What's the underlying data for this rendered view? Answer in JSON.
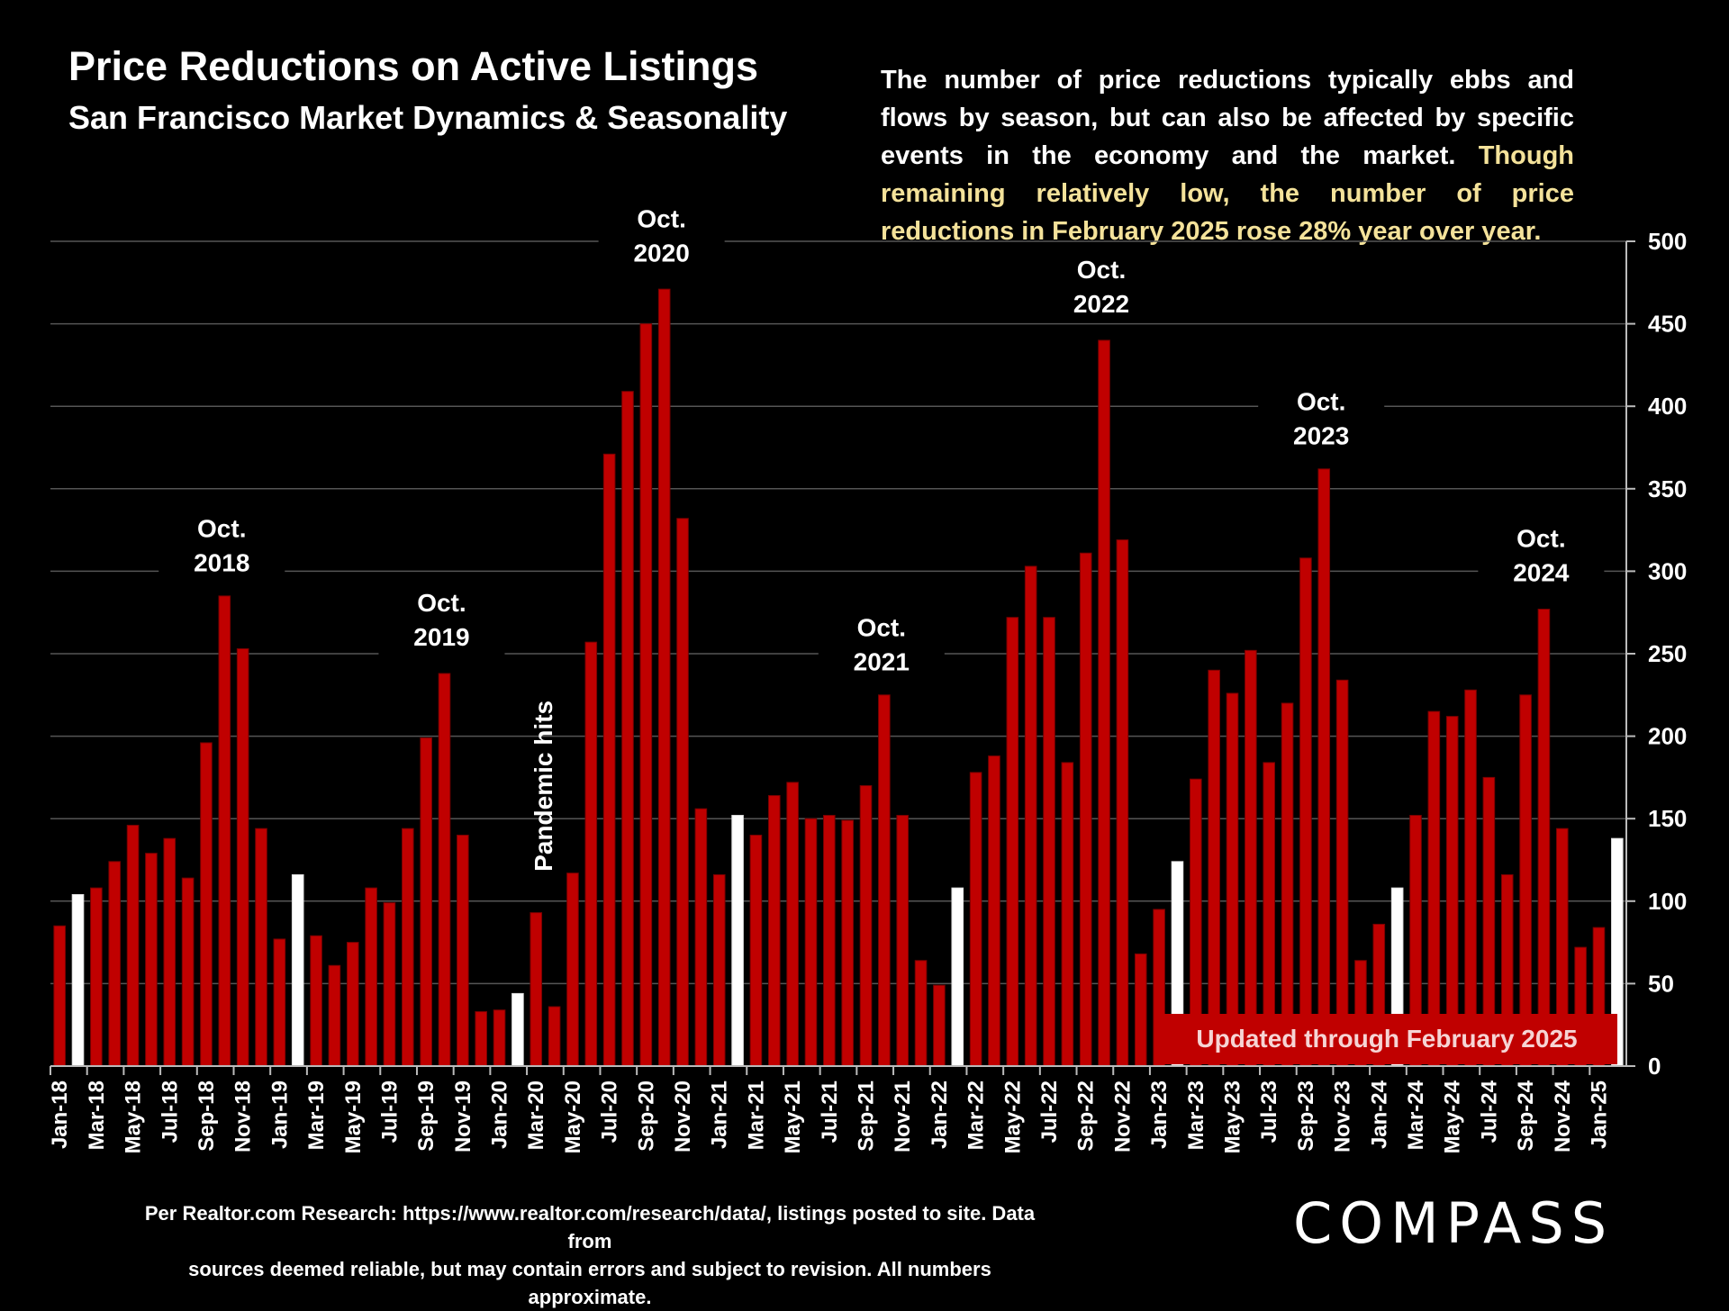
{
  "header": {
    "title": "Price Reductions on Active Listings",
    "subtitle": "San Francisco Market Dynamics & Seasonality"
  },
  "description": {
    "text": "The number of price reductions typically ebbs and flows by season, but can also be affected by specific events in the economy and the market.",
    "highlight": "Though remaining relatively low, the number of price reductions in February 2025 rose 28% year over year."
  },
  "updated_label": "Updated through February 2025",
  "source_lines": [
    "Per Realtor.com Research:  https://www.realtor.com/research/data/, listings posted to site. Data from",
    "sources deemed reliable, but may contain errors and subject to revision. All numbers approximate."
  ],
  "logo": "COMPASS",
  "colors": {
    "bar": "#c00000",
    "bar_highlight": "#ffffff",
    "gridline": "#555555",
    "highlight_text": "#f4e29a",
    "background": "#000000"
  },
  "chart_data": {
    "type": "bar",
    "title": "Price Reductions on Active Listings",
    "subtitle": "San Francisco Market Dynamics & Seasonality",
    "ylim": [
      0,
      500
    ],
    "y_ticks": [
      0,
      50,
      100,
      150,
      200,
      250,
      300,
      350,
      400,
      450,
      500
    ],
    "y_axis_side": "right",
    "grid": true,
    "categories": [
      "Jan-18",
      "Feb-18",
      "Mar-18",
      "Apr-18",
      "May-18",
      "Jun-18",
      "Jul-18",
      "Aug-18",
      "Sep-18",
      "Oct-18",
      "Nov-18",
      "Dec-18",
      "Jan-19",
      "Feb-19",
      "Mar-19",
      "Apr-19",
      "May-19",
      "Jun-19",
      "Jul-19",
      "Aug-19",
      "Sep-19",
      "Oct-19",
      "Nov-19",
      "Dec-19",
      "Jan-20",
      "Feb-20",
      "Mar-20",
      "Apr-20",
      "May-20",
      "Jun-20",
      "Jul-20",
      "Aug-20",
      "Sep-20",
      "Oct-20",
      "Nov-20",
      "Dec-20",
      "Jan-21",
      "Feb-21",
      "Mar-21",
      "Apr-21",
      "May-21",
      "Jun-21",
      "Jul-21",
      "Aug-21",
      "Sep-21",
      "Oct-21",
      "Nov-21",
      "Dec-21",
      "Jan-22",
      "Feb-22",
      "Mar-22",
      "Apr-22",
      "May-22",
      "Jun-22",
      "Jul-22",
      "Aug-22",
      "Sep-22",
      "Oct-22",
      "Nov-22",
      "Dec-22",
      "Jan-23",
      "Feb-23",
      "Mar-23",
      "Apr-23",
      "May-23",
      "Jun-23",
      "Jul-23",
      "Aug-23",
      "Sep-23",
      "Oct-23",
      "Nov-23",
      "Dec-23",
      "Jan-24",
      "Feb-24",
      "Mar-24",
      "Apr-24",
      "May-24",
      "Jun-24",
      "Jul-24",
      "Aug-24",
      "Sep-24",
      "Oct-24",
      "Nov-24",
      "Dec-24",
      "Jan-25",
      "Feb-25"
    ],
    "values": [
      85,
      104,
      108,
      124,
      146,
      129,
      138,
      114,
      196,
      285,
      253,
      144,
      77,
      116,
      79,
      61,
      75,
      108,
      99,
      144,
      199,
      238,
      140,
      33,
      34,
      44,
      93,
      36,
      117,
      257,
      371,
      409,
      450,
      471,
      332,
      156,
      116,
      152,
      140,
      164,
      172,
      150,
      152,
      149,
      170,
      225,
      152,
      64,
      49,
      108,
      178,
      188,
      272,
      303,
      272,
      184,
      311,
      440,
      319,
      68,
      95,
      124,
      174,
      240,
      226,
      252,
      184,
      220,
      308,
      362,
      234,
      64,
      86,
      108,
      152,
      215,
      212,
      228,
      175,
      116,
      225,
      277,
      144,
      72,
      84,
      138
    ],
    "highlighted_categories": [
      "Feb-18",
      "Feb-19",
      "Feb-20",
      "Feb-21",
      "Feb-22",
      "Feb-23",
      "Feb-24",
      "Feb-25"
    ],
    "x_tick_labels": [
      "Jan-18",
      "Mar-18",
      "May-18",
      "Jul-18",
      "Sep-18",
      "Nov-18",
      "Jan-19",
      "Mar-19",
      "May-19",
      "Jul-19",
      "Sep-19",
      "Nov-19",
      "Jan-20",
      "Mar-20",
      "May-20",
      "Jul-20",
      "Sep-20",
      "Nov-20",
      "Jan-21",
      "Mar-21",
      "May-21",
      "Jul-21",
      "Sep-21",
      "Nov-21",
      "Jan-22",
      "Mar-22",
      "May-22",
      "Jul-22",
      "Sep-22",
      "Nov-22",
      "Jan-23",
      "Mar-23",
      "May-23",
      "Jul-23",
      "Sep-23",
      "Nov-23",
      "Jan-24",
      "Mar-24",
      "May-24",
      "Jul-24",
      "Sep-24",
      "Nov-24",
      "Jan-25"
    ],
    "annotations": [
      {
        "category": "Oct-18",
        "lines": [
          "Oct.",
          "2018"
        ],
        "value_anchor": 290
      },
      {
        "category": "Oct-19",
        "lines": [
          "Oct.",
          "2019"
        ],
        "value_anchor": 245
      },
      {
        "category": "Oct-20",
        "lines": [
          "Oct.",
          "2020"
        ],
        "value_anchor": 478
      },
      {
        "category": "Oct-21",
        "lines": [
          "Oct.",
          "2021"
        ],
        "value_anchor": 230
      },
      {
        "category": "Oct-22",
        "lines": [
          "Oct.",
          "2022"
        ],
        "value_anchor": 447
      },
      {
        "category": "Oct-23",
        "lines": [
          "Oct.",
          "2023"
        ],
        "value_anchor": 367
      },
      {
        "category": "Oct-24",
        "lines": [
          "Oct.",
          "2024"
        ],
        "value_anchor": 284
      }
    ],
    "event_label": {
      "text": "Pandemic hits",
      "category": "Mar-20",
      "orientation": "vertical"
    }
  }
}
